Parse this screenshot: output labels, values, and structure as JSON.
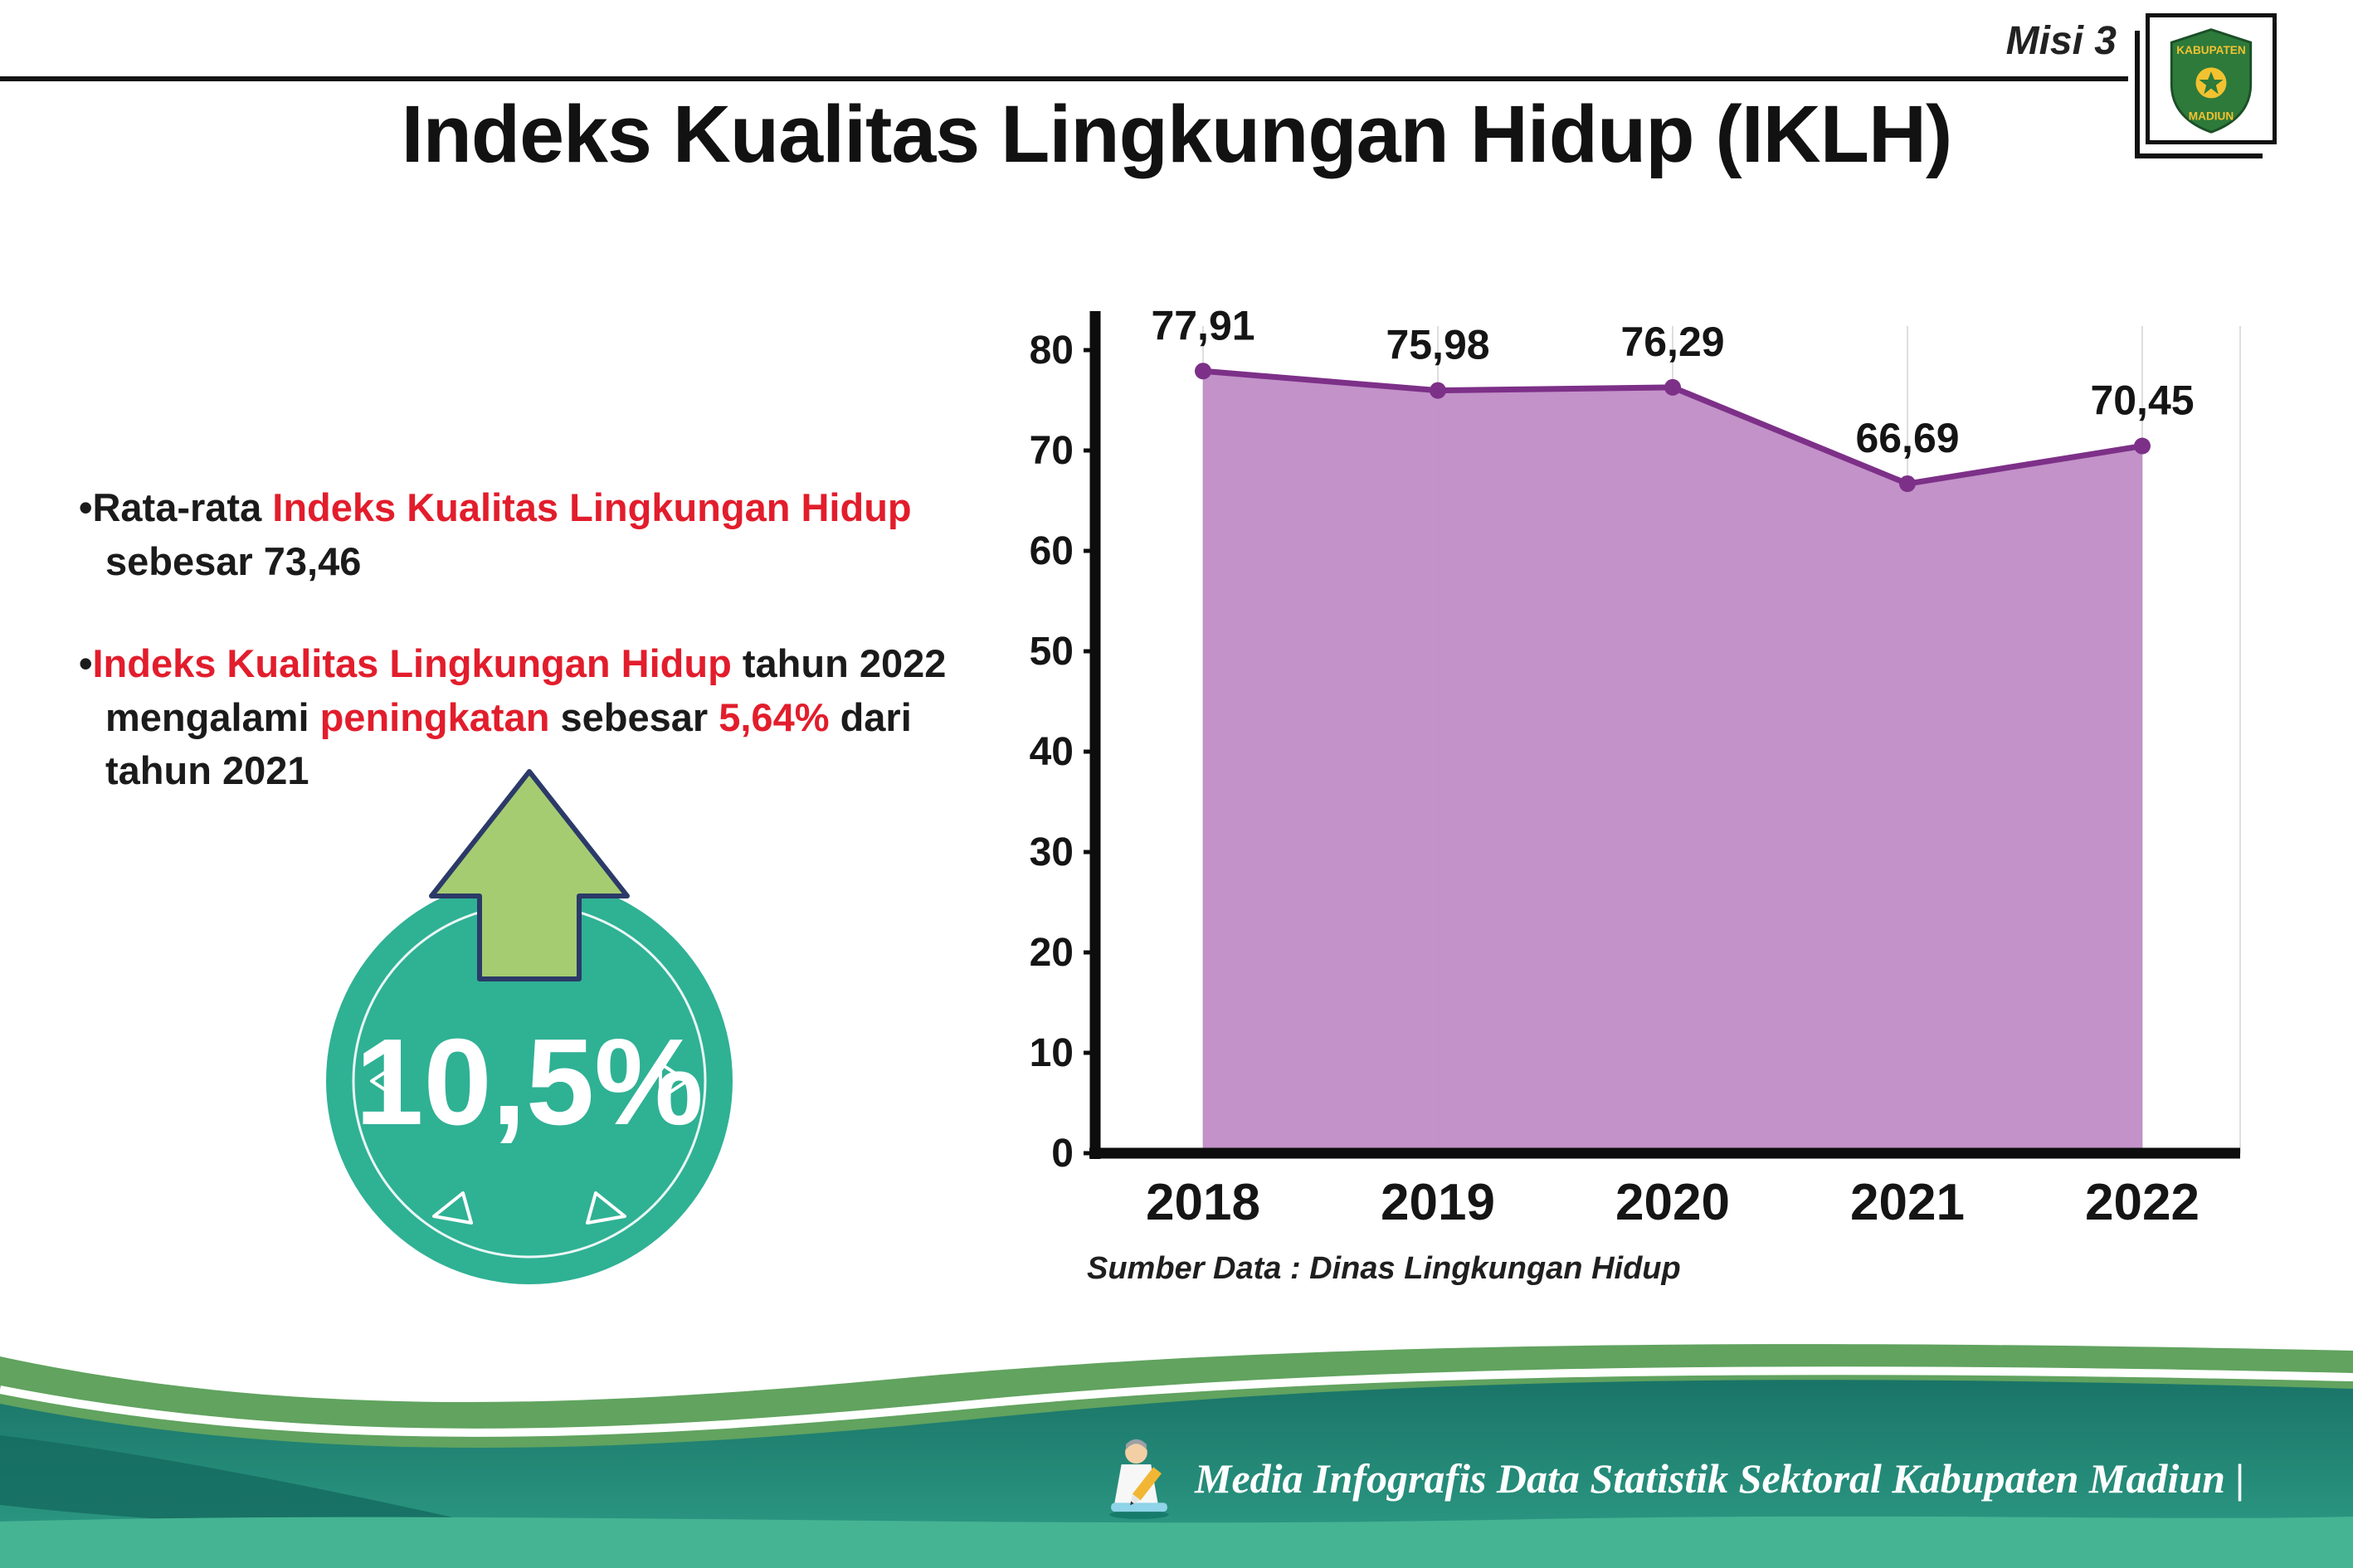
{
  "header": {
    "misi_label": "Misi 3",
    "logo": {
      "top_text": "KABUPATEN",
      "bottom_text": "MADIUN"
    }
  },
  "title": "Indeks Kualitas Lingkungan Hidup (IKLH)",
  "bullets": [
    {
      "segments": [
        {
          "text": "Rata-rata ",
          "color": "dark"
        },
        {
          "text": "Indeks Kualitas Lingkungan Hidup",
          "color": "red"
        },
        {
          "text": " sebesar 73,46",
          "color": "dark"
        }
      ]
    },
    {
      "segments": [
        {
          "text": "Indeks Kualitas Lingkungan Hidup",
          "color": "red"
        },
        {
          "text": " tahun 2022 mengalami ",
          "color": "dark"
        },
        {
          "text": "peningkatan",
          "color": "red"
        },
        {
          "text": " sebesar ",
          "color": "dark"
        },
        {
          "text": "5,64%",
          "color": "red"
        },
        {
          "text": " dari tahun 2021",
          "color": "dark"
        }
      ]
    }
  ],
  "badge": {
    "value": "10,5%"
  },
  "chart_data": {
    "type": "area",
    "categories": [
      "2018",
      "2019",
      "2020",
      "2021",
      "2022"
    ],
    "values": [
      77.91,
      75.98,
      76.29,
      66.69,
      70.45
    ],
    "value_labels": [
      "77,91",
      "75,98",
      "76,29",
      "66,69",
      "70,45"
    ],
    "ylim": [
      0,
      80
    ],
    "yticks": [
      0,
      10,
      20,
      30,
      40,
      50,
      60,
      70,
      80
    ],
    "xlabel": "",
    "ylabel": "",
    "grid": "vertical-light",
    "legend": "none",
    "line_color": "#7d3088",
    "fill_color": "#bf8cc5",
    "source": "Sumber Data : Dinas Lingkungan Hidup"
  },
  "footer": {
    "text": "Media Infografis Data Statistik Sektoral Kabupaten Madiun |"
  },
  "colors": {
    "accent_red": "#e21d2c",
    "chart_fill": "#bf8cc5",
    "chart_line": "#7d3088",
    "badge_teal": "#2fb194",
    "arrow_green": "#a6cc72",
    "wave_teal": "#1a7468",
    "wave_green": "#61a35f"
  }
}
